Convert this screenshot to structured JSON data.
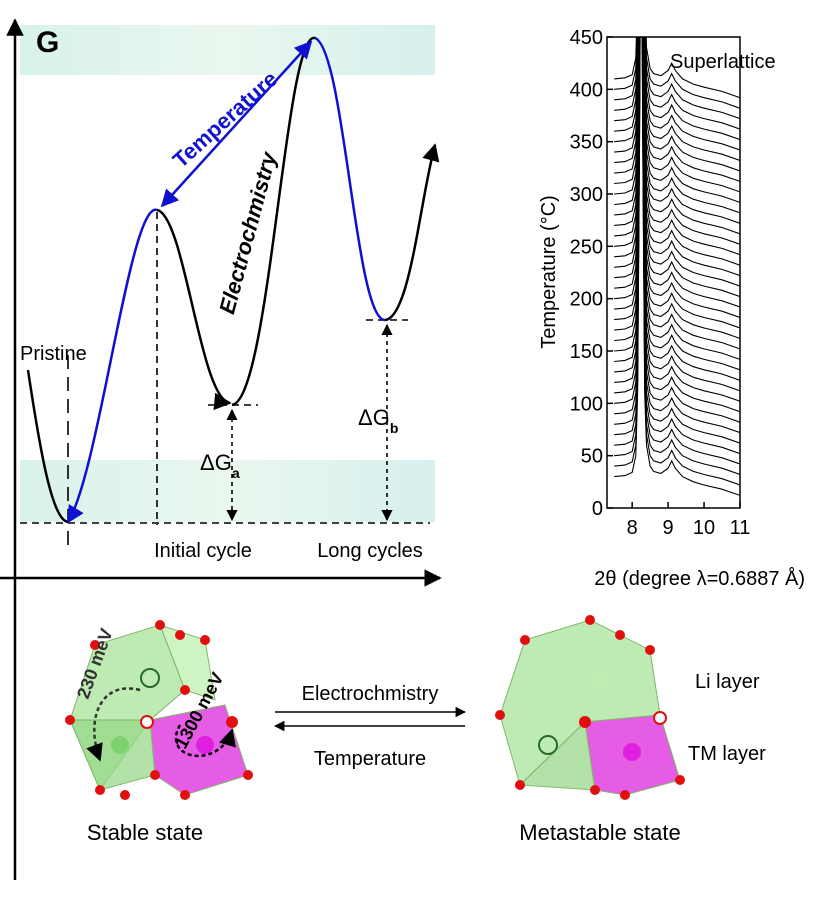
{
  "energy_diagram": {
    "axis_label": "G",
    "arrow_label": "Temperature",
    "curve_label": "Electrochmistry",
    "state_label": "Pristine",
    "delta_a": {
      "symbol": "ΔG",
      "subscript": "a"
    },
    "delta_b": {
      "symbol": "ΔG",
      "subscript": "b"
    },
    "x_labels": [
      "Initial cycle",
      "Long cycles"
    ]
  },
  "chart_data": {
    "type": "waterfall",
    "ylabel": "Temperature (°C)",
    "xlabel": "2θ (degree λ=0.6887 Å)",
    "annotation": "Superlattice",
    "xlim": [
      7.3,
      11
    ],
    "xticks": [
      8,
      9,
      10,
      11
    ],
    "ylim": [
      0,
      450
    ],
    "yticks": [
      0,
      50,
      100,
      150,
      200,
      250,
      300,
      350,
      400,
      450
    ],
    "color": "#000000",
    "profile": {
      "x": [
        7.5,
        7.8,
        8.0,
        8.1,
        8.15,
        8.2,
        8.25,
        8.3,
        8.35,
        8.4,
        8.5,
        8.6,
        8.8,
        9.0,
        9.1,
        9.2,
        9.4,
        9.7,
        10,
        10.5,
        11
      ],
      "intensity": [
        0,
        1,
        4,
        20,
        80,
        300,
        600,
        300,
        80,
        30,
        10,
        5,
        3,
        8,
        15,
        8,
        0,
        -5,
        -8,
        -12,
        -18
      ]
    },
    "offsets": [
      30,
      40,
      50,
      60,
      70,
      80,
      90,
      100,
      110,
      120,
      130,
      140,
      150,
      160,
      170,
      180,
      190,
      200,
      210,
      220,
      230,
      240,
      250,
      260,
      270,
      280,
      290,
      300,
      310,
      320,
      330,
      340,
      350,
      360,
      370,
      380,
      390,
      400,
      410
    ]
  },
  "structure": {
    "barrier_low": "230 meV",
    "barrier_high": "1300 meV",
    "forward": "Electrochmistry",
    "backward": "Temperature",
    "left_state": "Stable state",
    "right_state": "Metastable state",
    "layer_top": "Li layer",
    "layer_bottom": "TM layer"
  }
}
